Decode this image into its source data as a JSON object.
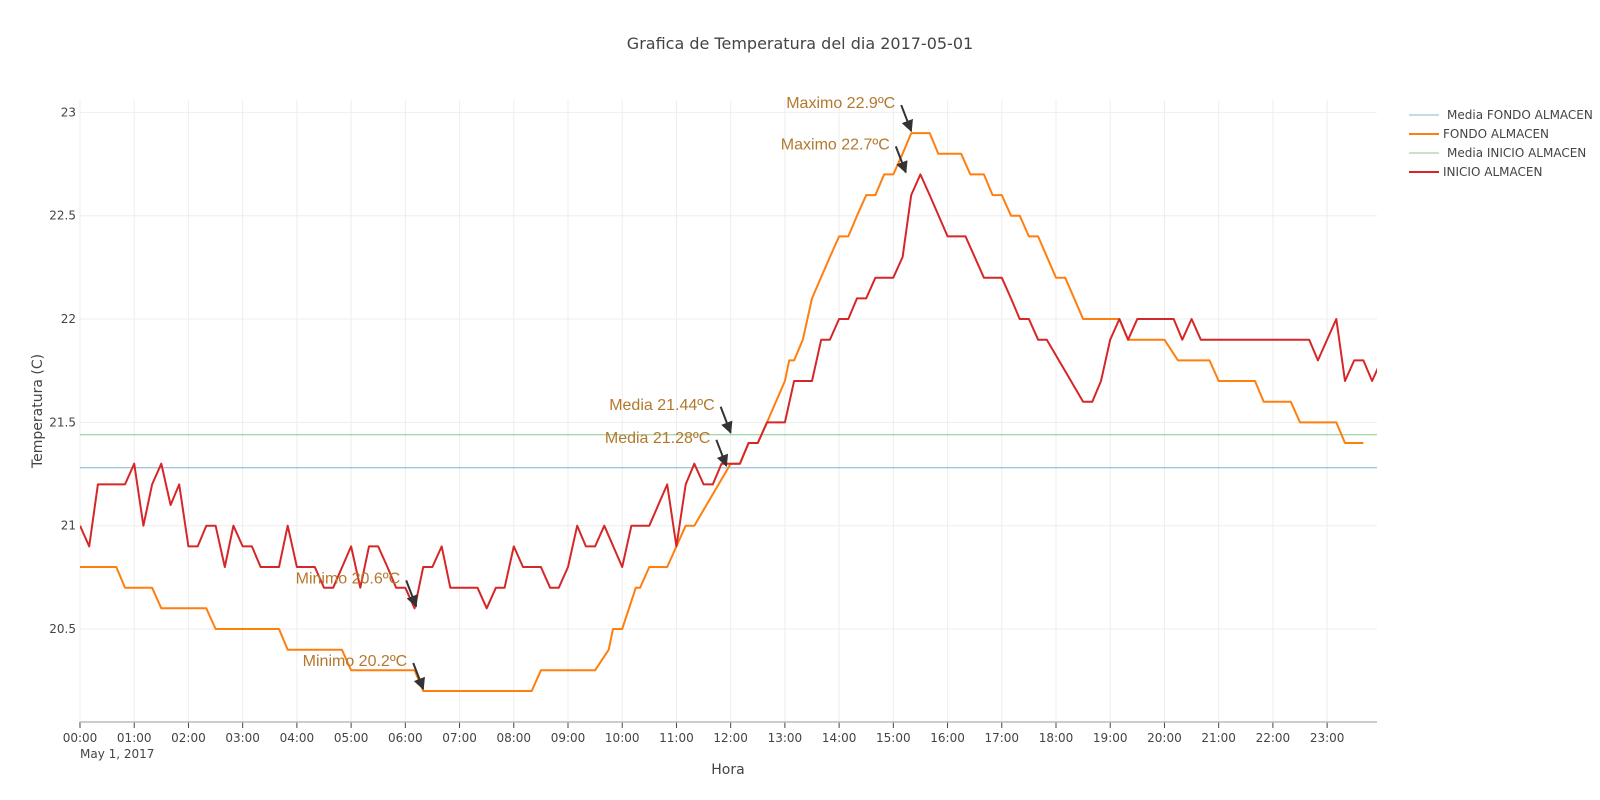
{
  "chart_data": {
    "type": "line",
    "title": "Grafica de Temperatura del dia 2017-05-01",
    "xlabel": "Hora",
    "ylabel": "Temperatura (C)",
    "x_date_label": "May 1, 2017",
    "x_range_hours": [
      0,
      23.92
    ],
    "ylim": [
      20.05,
      23.06
    ],
    "x_ticks": [
      "00:00",
      "01:00",
      "02:00",
      "03:00",
      "04:00",
      "05:00",
      "06:00",
      "07:00",
      "08:00",
      "09:00",
      "10:00",
      "11:00",
      "12:00",
      "13:00",
      "14:00",
      "15:00",
      "16:00",
      "17:00",
      "18:00",
      "19:00",
      "20:00",
      "21:00",
      "22:00",
      "23:00"
    ],
    "y_ticks": [
      "20.5",
      "21",
      "21.5",
      "22",
      "22.5",
      "23"
    ],
    "grid": true,
    "legend_position": "top-right",
    "series": [
      {
        "name": "Media FONDO ALMACEN",
        "color": "#1f77b4",
        "kind": "mean",
        "points": [
          [
            0,
            21.28
          ],
          [
            23.92,
            21.28
          ]
        ]
      },
      {
        "name": "FONDO ALMACEN",
        "color": "#ff7f0e",
        "kind": "data",
        "points": [
          [
            0,
            20.8
          ],
          [
            0.67,
            20.8
          ],
          [
            0.83,
            20.7
          ],
          [
            1.33,
            20.7
          ],
          [
            1.5,
            20.6
          ],
          [
            2.33,
            20.6
          ],
          [
            2.5,
            20.5
          ],
          [
            3.67,
            20.5
          ],
          [
            3.83,
            20.4
          ],
          [
            4.83,
            20.4
          ],
          [
            5.0,
            20.3
          ],
          [
            6.17,
            20.3
          ],
          [
            6.33,
            20.2
          ],
          [
            8.33,
            20.2
          ],
          [
            8.5,
            20.3
          ],
          [
            9.5,
            20.3
          ],
          [
            9.75,
            20.4
          ],
          [
            9.83,
            20.5
          ],
          [
            10.0,
            20.5
          ],
          [
            10.25,
            20.7
          ],
          [
            10.33,
            20.7
          ],
          [
            10.5,
            20.8
          ],
          [
            10.83,
            20.8
          ],
          [
            11.17,
            21.0
          ],
          [
            11.33,
            21.0
          ],
          [
            12.0,
            21.3
          ],
          [
            12.17,
            21.3
          ],
          [
            12.33,
            21.4
          ],
          [
            12.5,
            21.4
          ],
          [
            12.67,
            21.5
          ],
          [
            13.0,
            21.7
          ],
          [
            13.08,
            21.8
          ],
          [
            13.17,
            21.8
          ],
          [
            13.33,
            21.9
          ],
          [
            13.5,
            22.1
          ],
          [
            13.83,
            22.3
          ],
          [
            14.0,
            22.4
          ],
          [
            14.17,
            22.4
          ],
          [
            14.33,
            22.5
          ],
          [
            14.5,
            22.6
          ],
          [
            14.67,
            22.6
          ],
          [
            14.83,
            22.7
          ],
          [
            15.0,
            22.7
          ],
          [
            15.17,
            22.8
          ],
          [
            15.33,
            22.9
          ],
          [
            15.67,
            22.9
          ],
          [
            15.83,
            22.8
          ],
          [
            16.25,
            22.8
          ],
          [
            16.42,
            22.7
          ],
          [
            16.67,
            22.7
          ],
          [
            16.83,
            22.6
          ],
          [
            17.0,
            22.6
          ],
          [
            17.17,
            22.5
          ],
          [
            17.33,
            22.5
          ],
          [
            17.5,
            22.4
          ],
          [
            17.67,
            22.4
          ],
          [
            18.0,
            22.2
          ],
          [
            18.17,
            22.2
          ],
          [
            18.5,
            22.0
          ],
          [
            19.0,
            22.0
          ],
          [
            19.17,
            22.0
          ],
          [
            19.33,
            21.9
          ],
          [
            20.0,
            21.9
          ],
          [
            20.25,
            21.8
          ],
          [
            20.83,
            21.8
          ],
          [
            21.0,
            21.7
          ],
          [
            21.67,
            21.7
          ],
          [
            21.83,
            21.6
          ],
          [
            22.33,
            21.6
          ],
          [
            22.5,
            21.5
          ],
          [
            23.17,
            21.5
          ],
          [
            23.33,
            21.4
          ],
          [
            23.67,
            21.4
          ]
        ]
      },
      {
        "name": "Media INICIO ALMACEN",
        "color": "#2ca02c",
        "kind": "mean",
        "points": [
          [
            0,
            21.44
          ],
          [
            23.92,
            21.44
          ]
        ]
      },
      {
        "name": "INICIO ALMACEN",
        "color": "#d62728",
        "kind": "data",
        "points": [
          [
            0,
            21.0
          ],
          [
            0.17,
            20.9
          ],
          [
            0.33,
            21.2
          ],
          [
            0.83,
            21.2
          ],
          [
            1.0,
            21.3
          ],
          [
            1.17,
            21.0
          ],
          [
            1.33,
            21.2
          ],
          [
            1.5,
            21.3
          ],
          [
            1.67,
            21.1
          ],
          [
            1.83,
            21.2
          ],
          [
            2.0,
            20.9
          ],
          [
            2.17,
            20.9
          ],
          [
            2.33,
            21.0
          ],
          [
            2.5,
            21.0
          ],
          [
            2.67,
            20.8
          ],
          [
            2.83,
            21.0
          ],
          [
            3.0,
            20.9
          ],
          [
            3.17,
            20.9
          ],
          [
            3.33,
            20.8
          ],
          [
            3.67,
            20.8
          ],
          [
            3.83,
            21.0
          ],
          [
            4.0,
            20.8
          ],
          [
            4.33,
            20.8
          ],
          [
            4.5,
            20.7
          ],
          [
            4.67,
            20.7
          ],
          [
            5.0,
            20.9
          ],
          [
            5.17,
            20.7
          ],
          [
            5.33,
            20.9
          ],
          [
            5.5,
            20.9
          ],
          [
            5.67,
            20.8
          ],
          [
            5.83,
            20.7
          ],
          [
            6.0,
            20.7
          ],
          [
            6.17,
            20.6
          ],
          [
            6.33,
            20.8
          ],
          [
            6.5,
            20.8
          ],
          [
            6.67,
            20.9
          ],
          [
            6.83,
            20.7
          ],
          [
            7.33,
            20.7
          ],
          [
            7.5,
            20.6
          ],
          [
            7.67,
            20.7
          ],
          [
            7.83,
            20.7
          ],
          [
            8.0,
            20.9
          ],
          [
            8.17,
            20.8
          ],
          [
            8.5,
            20.8
          ],
          [
            8.67,
            20.7
          ],
          [
            8.83,
            20.7
          ],
          [
            9.0,
            20.8
          ],
          [
            9.17,
            21.0
          ],
          [
            9.33,
            20.9
          ],
          [
            9.5,
            20.9
          ],
          [
            9.67,
            21.0
          ],
          [
            10.0,
            20.8
          ],
          [
            10.17,
            21.0
          ],
          [
            10.5,
            21.0
          ],
          [
            10.83,
            21.2
          ],
          [
            11.0,
            20.9
          ],
          [
            11.17,
            21.2
          ],
          [
            11.33,
            21.3
          ],
          [
            11.5,
            21.2
          ],
          [
            11.67,
            21.2
          ],
          [
            11.83,
            21.3
          ],
          [
            12.17,
            21.3
          ],
          [
            12.33,
            21.4
          ],
          [
            12.5,
            21.4
          ],
          [
            12.67,
            21.5
          ],
          [
            13.0,
            21.5
          ],
          [
            13.17,
            21.7
          ],
          [
            13.5,
            21.7
          ],
          [
            13.67,
            21.9
          ],
          [
            13.83,
            21.9
          ],
          [
            14.0,
            22.0
          ],
          [
            14.17,
            22.0
          ],
          [
            14.33,
            22.1
          ],
          [
            14.5,
            22.1
          ],
          [
            14.67,
            22.2
          ],
          [
            15.0,
            22.2
          ],
          [
            15.17,
            22.3
          ],
          [
            15.33,
            22.6
          ],
          [
            15.5,
            22.7
          ],
          [
            15.67,
            22.6
          ],
          [
            16.0,
            22.4
          ],
          [
            16.33,
            22.4
          ],
          [
            16.5,
            22.3
          ],
          [
            16.67,
            22.2
          ],
          [
            16.83,
            22.2
          ],
          [
            17.0,
            22.2
          ],
          [
            17.17,
            22.1
          ],
          [
            17.33,
            22.0
          ],
          [
            17.5,
            22.0
          ],
          [
            17.67,
            21.9
          ],
          [
            17.83,
            21.9
          ],
          [
            18.5,
            21.6
          ],
          [
            18.67,
            21.6
          ],
          [
            18.83,
            21.7
          ],
          [
            19.0,
            21.9
          ],
          [
            19.17,
            22.0
          ],
          [
            19.33,
            21.9
          ],
          [
            19.5,
            22.0
          ],
          [
            19.83,
            22.0
          ],
          [
            20.17,
            22.0
          ],
          [
            20.33,
            21.9
          ],
          [
            20.5,
            22.0
          ],
          [
            20.67,
            21.9
          ],
          [
            22.67,
            21.9
          ],
          [
            22.83,
            21.8
          ],
          [
            23.17,
            22.0
          ],
          [
            23.33,
            21.7
          ],
          [
            23.5,
            21.8
          ],
          [
            23.67,
            21.8
          ],
          [
            23.83,
            21.7
          ],
          [
            24.0,
            21.8
          ],
          [
            24.17,
            21.8
          ],
          [
            24.33,
            21.7
          ]
        ]
      }
    ],
    "annotations": [
      {
        "text": "Maximo 22.9ºC",
        "x": 15.33,
        "y": 22.9,
        "color": "#b4782d"
      },
      {
        "text": "Maximo 22.7ºC",
        "x": 15.23,
        "y": 22.7,
        "color": "#b4782d"
      },
      {
        "text": "Media 21.44ºC",
        "x": 12.0,
        "y": 21.44,
        "color": "#b4782d"
      },
      {
        "text": "Media 21.28ºC",
        "x": 11.92,
        "y": 21.28,
        "color": "#b4782d"
      },
      {
        "text": "Minimo 20.6ºC",
        "x": 6.2,
        "y": 20.6,
        "color": "#b4782d"
      },
      {
        "text": "Minimo 20.2ºC",
        "x": 6.33,
        "y": 20.2,
        "color": "#b4782d"
      }
    ]
  }
}
